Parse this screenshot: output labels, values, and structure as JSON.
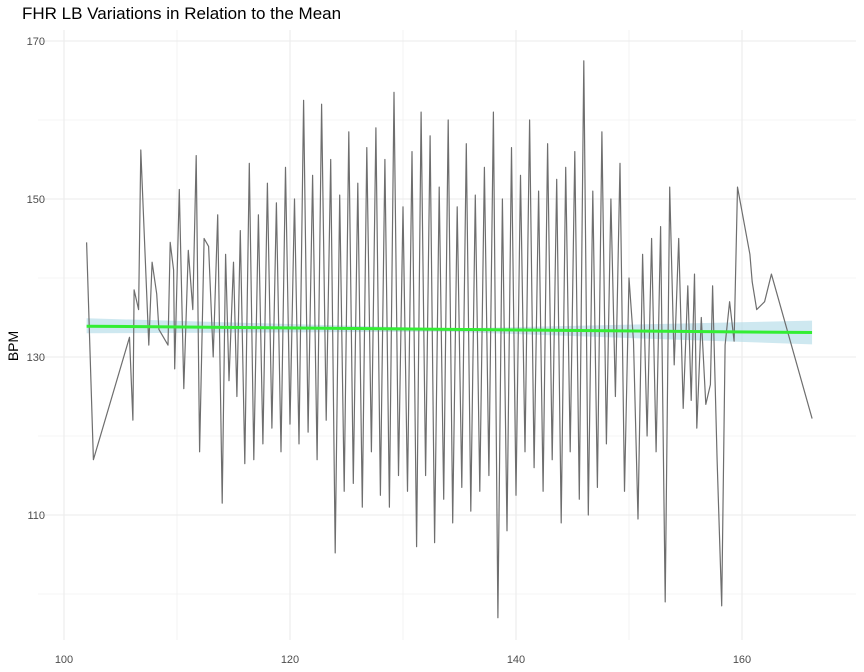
{
  "chart_data": {
    "type": "line",
    "title": "FHR LB Variations in Relation to the Mean",
    "xlabel": "",
    "ylabel": "BPM",
    "xlim": [
      100,
      167
    ],
    "ylim": [
      98,
      172
    ],
    "x_ticks": [
      100,
      120,
      140,
      160
    ],
    "y_ticks": [
      110,
      130,
      150,
      170
    ],
    "x_tick_labels": [
      "100",
      "120",
      "140",
      "160"
    ],
    "y_tick_labels": [
      "110",
      "130",
      "150",
      "170"
    ],
    "grid": true,
    "legend": "none",
    "colors": {
      "series": "#6e6e6e",
      "trend": "#33ee33",
      "band": "#add8e6",
      "grid": "#ebebeb"
    },
    "series": [
      {
        "type": "line",
        "points": [
          [
            102.0,
            144.5
          ],
          [
            102.6,
            117.0
          ],
          [
            105.8,
            132.5
          ],
          [
            106.1,
            122.0
          ],
          [
            106.2,
            138.5
          ],
          [
            106.6,
            136.0
          ],
          [
            106.8,
            156.2
          ],
          [
            107.5,
            131.5
          ],
          [
            107.8,
            142.0
          ],
          [
            108.2,
            138.0
          ],
          [
            108.4,
            133.5
          ],
          [
            109.2,
            131.5
          ],
          [
            109.4,
            144.5
          ],
          [
            109.7,
            141.0
          ],
          [
            109.8,
            128.5
          ],
          [
            110.2,
            151.2
          ],
          [
            110.6,
            126.0
          ],
          [
            111.0,
            143.5
          ],
          [
            111.4,
            136.0
          ],
          [
            111.7,
            155.5
          ],
          [
            112.0,
            118.0
          ],
          [
            112.4,
            145.0
          ],
          [
            112.8,
            144.0
          ],
          [
            113.2,
            130.0
          ],
          [
            113.6,
            148.0
          ],
          [
            114.0,
            111.5
          ],
          [
            114.3,
            143.0
          ],
          [
            114.6,
            127.0
          ],
          [
            115.0,
            142.0
          ],
          [
            115.3,
            125.0
          ],
          [
            115.6,
            146.0
          ],
          [
            116.0,
            116.5
          ],
          [
            116.4,
            154.5
          ],
          [
            116.8,
            117.0
          ],
          [
            117.2,
            148.0
          ],
          [
            117.6,
            119.0
          ],
          [
            118.0,
            152.0
          ],
          [
            118.4,
            121.0
          ],
          [
            118.8,
            149.5
          ],
          [
            119.2,
            118.0
          ],
          [
            119.6,
            154.0
          ],
          [
            120.0,
            121.5
          ],
          [
            120.4,
            150.0
          ],
          [
            120.8,
            119.0
          ],
          [
            121.2,
            162.5
          ],
          [
            121.6,
            120.5
          ],
          [
            122.0,
            153.0
          ],
          [
            122.4,
            117.0
          ],
          [
            122.8,
            162.0
          ],
          [
            123.2,
            122.0
          ],
          [
            123.6,
            155.0
          ],
          [
            124.0,
            105.2
          ],
          [
            124.4,
            150.5
          ],
          [
            124.8,
            113.0
          ],
          [
            125.2,
            158.5
          ],
          [
            125.6,
            114.0
          ],
          [
            126.0,
            152.0
          ],
          [
            126.4,
            111.0
          ],
          [
            126.8,
            156.5
          ],
          [
            127.2,
            118.0
          ],
          [
            127.6,
            159.0
          ],
          [
            128.0,
            112.5
          ],
          [
            128.4,
            155.0
          ],
          [
            128.8,
            111.0
          ],
          [
            129.2,
            163.5
          ],
          [
            129.6,
            115.0
          ],
          [
            130.0,
            149.0
          ],
          [
            130.4,
            113.0
          ],
          [
            130.8,
            156.0
          ],
          [
            131.2,
            106.0
          ],
          [
            131.6,
            161.0
          ],
          [
            132.0,
            115.0
          ],
          [
            132.4,
            158.0
          ],
          [
            132.8,
            106.5
          ],
          [
            133.2,
            151.5
          ],
          [
            133.6,
            112.0
          ],
          [
            134.0,
            160.0
          ],
          [
            134.4,
            109.0
          ],
          [
            134.8,
            149.0
          ],
          [
            135.2,
            113.5
          ],
          [
            135.6,
            157.0
          ],
          [
            136.0,
            110.5
          ],
          [
            136.4,
            150.5
          ],
          [
            136.8,
            113.0
          ],
          [
            137.2,
            154.0
          ],
          [
            137.6,
            115.0
          ],
          [
            138.0,
            161.0
          ],
          [
            138.4,
            97.0
          ],
          [
            138.8,
            150.0
          ],
          [
            139.2,
            108.0
          ],
          [
            139.6,
            156.5
          ],
          [
            140.0,
            112.5
          ],
          [
            140.4,
            153.0
          ],
          [
            140.8,
            118.0
          ],
          [
            141.2,
            160.0
          ],
          [
            141.6,
            116.0
          ],
          [
            142.0,
            151.0
          ],
          [
            142.4,
            113.0
          ],
          [
            142.8,
            157.0
          ],
          [
            143.2,
            117.0
          ],
          [
            143.6,
            152.5
          ],
          [
            144.0,
            109.0
          ],
          [
            144.4,
            154.0
          ],
          [
            144.8,
            118.0
          ],
          [
            145.2,
            156.0
          ],
          [
            145.6,
            112.0
          ],
          [
            146.0,
            167.5
          ],
          [
            146.4,
            110.0
          ],
          [
            146.8,
            151.0
          ],
          [
            147.2,
            113.5
          ],
          [
            147.6,
            158.5
          ],
          [
            148.0,
            119.0
          ],
          [
            148.4,
            150.0
          ],
          [
            148.8,
            125.0
          ],
          [
            149.2,
            154.5
          ],
          [
            149.6,
            113.0
          ],
          [
            150.0,
            140.0
          ],
          [
            150.4,
            132.0
          ],
          [
            150.8,
            109.5
          ],
          [
            151.2,
            143.0
          ],
          [
            151.6,
            120.0
          ],
          [
            152.0,
            145.0
          ],
          [
            152.4,
            118.0
          ],
          [
            152.8,
            146.5
          ],
          [
            153.2,
            99.0
          ],
          [
            153.6,
            151.5
          ],
          [
            154.0,
            129.0
          ],
          [
            154.4,
            145.0
          ],
          [
            154.8,
            123.5
          ],
          [
            155.2,
            139.0
          ],
          [
            155.5,
            124.5
          ],
          [
            155.8,
            140.5
          ],
          [
            156.0,
            121.0
          ],
          [
            156.4,
            135.0
          ],
          [
            156.8,
            124.0
          ],
          [
            157.2,
            126.5
          ],
          [
            157.4,
            139.0
          ],
          [
            157.8,
            117.0
          ],
          [
            158.2,
            98.5
          ],
          [
            158.5,
            131.5
          ],
          [
            158.9,
            137.0
          ],
          [
            159.3,
            132.0
          ],
          [
            159.6,
            151.5
          ],
          [
            160.7,
            143.0
          ],
          [
            160.9,
            139.5
          ],
          [
            161.3,
            136.0
          ],
          [
            162.0,
            137.0
          ],
          [
            162.6,
            140.5
          ],
          [
            166.2,
            122.2
          ]
        ]
      }
    ],
    "trend_line": {
      "x": [
        102.0,
        166.2
      ],
      "y": [
        133.9,
        133.1
      ]
    },
    "confidence_band": {
      "x": [
        102.0,
        134.0,
        166.2
      ],
      "lower": [
        133.0,
        133.2,
        131.6
      ],
      "upper": [
        134.9,
        133.6,
        134.6
      ]
    }
  }
}
